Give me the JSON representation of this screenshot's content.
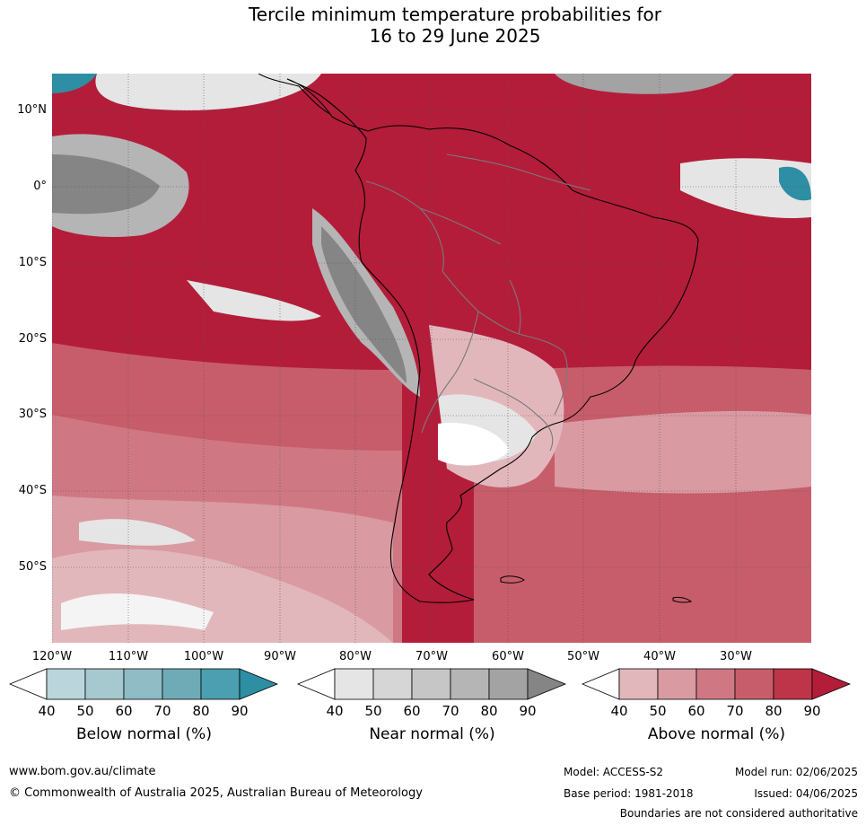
{
  "title_line1": "Tercile minimum temperature probabilities for",
  "title_line2": "16 to 29 June 2025",
  "lat_labels": [
    "10°N",
    "0°",
    "10°S",
    "20°S",
    "30°S",
    "40°S",
    "50°S"
  ],
  "lon_labels": [
    "120°W",
    "110°W",
    "100°W",
    "90°W",
    "80°W",
    "70°W",
    "60°W",
    "50°W",
    "40°W",
    "30°W"
  ],
  "colorbars": [
    {
      "title": "Below normal (%)",
      "ticks": [
        "40",
        "50",
        "60",
        "70",
        "80",
        "90"
      ],
      "colors": [
        "#bad5dc",
        "#a6c8cf",
        "#8fbcc5",
        "#6fabb7",
        "#4b9fb0",
        "#2e8ea3"
      ]
    },
    {
      "title": "Near normal (%)",
      "ticks": [
        "40",
        "50",
        "60",
        "70",
        "80",
        "90"
      ],
      "colors": [
        "#e5e5e5",
        "#d6d6d6",
        "#c6c6c6",
        "#b5b5b5",
        "#a3a3a3",
        "#858585"
      ]
    },
    {
      "title": "Above normal (%)",
      "ticks": [
        "40",
        "50",
        "60",
        "70",
        "80",
        "90"
      ],
      "colors": [
        "#e2b7bc",
        "#d99aa2",
        "#cf7883",
        "#c75d6a",
        "#be3449",
        "#b31d3a"
      ]
    }
  ],
  "footer": {
    "url": "www.bom.gov.au/climate",
    "copyright": "© Commonwealth of Australia 2025, Australian Bureau of Meteorology",
    "model": "Model: ACCESS-S2",
    "base_period": "Base period: 1981-2018",
    "model_run": "Model run: 02/06/2025",
    "issued": "Issued: 04/06/2025",
    "disclaimer": "Boundaries are not considered authoritative"
  },
  "colors": {
    "above_dark": "#b31d3a",
    "above_mid": "#c75d6a",
    "above_light": "#e2b7bc",
    "near_light": "#e5e5e5",
    "near_mid": "#b5b5b5",
    "near_dark": "#858585",
    "below_dark": "#2e8ea3"
  }
}
